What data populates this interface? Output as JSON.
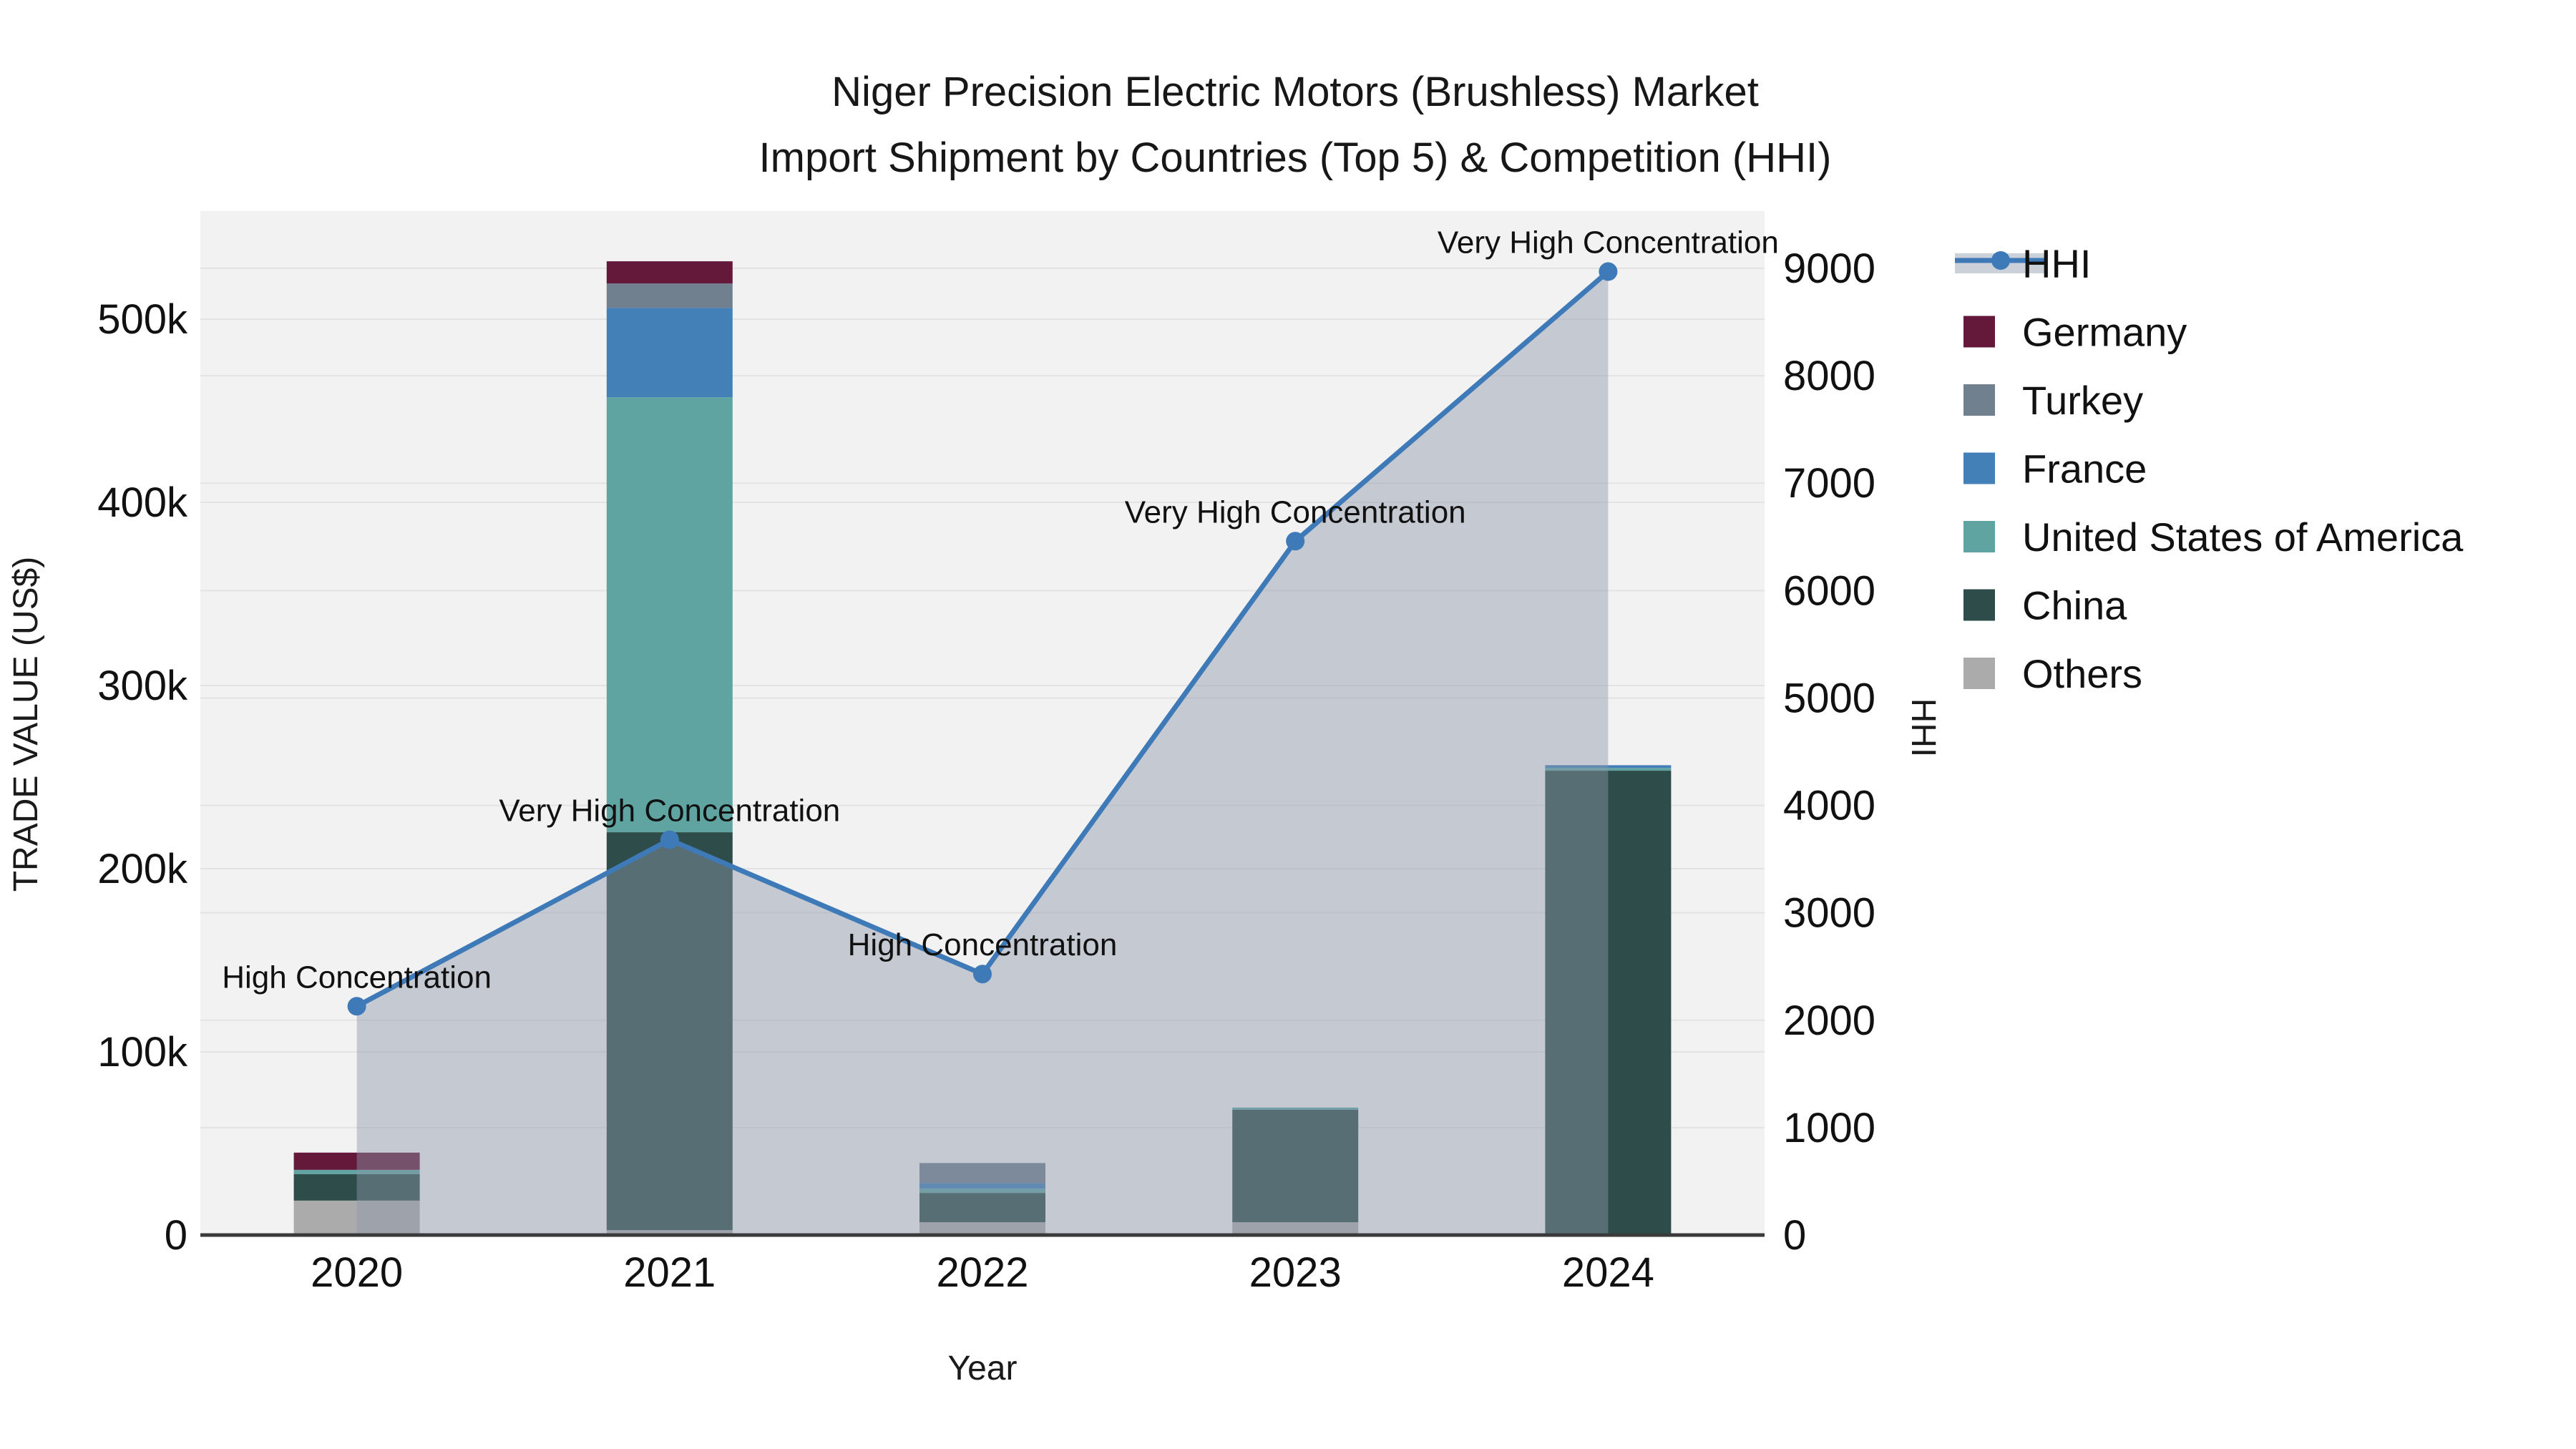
{
  "title": {
    "line1": "Niger Precision Electric Motors (Brushless) Market",
    "line2": "Import Shipment by Countries (Top 5) & Competition (HHI)"
  },
  "axes": {
    "x_title": "Year",
    "left_title": "TRADE VALUE (US$)",
    "right_title": "HHI",
    "x_ticks": [
      "2020",
      "2021",
      "2022",
      "2023",
      "2024"
    ],
    "left_ticks": {
      "labels": [
        "0",
        "100k",
        "200k",
        "300k",
        "400k",
        "500k"
      ],
      "values": [
        0,
        100000,
        200000,
        300000,
        400000,
        500000
      ]
    },
    "right_ticks": {
      "labels": [
        "0",
        "1000",
        "2000",
        "3000",
        "4000",
        "5000",
        "6000",
        "7000",
        "8000",
        "9000"
      ],
      "values": [
        0,
        1000,
        2000,
        3000,
        4000,
        5000,
        6000,
        7000,
        8000,
        9000
      ]
    }
  },
  "chart_data": {
    "type": "bar+line",
    "title": "Niger Precision Electric Motors (Brushless) Market Import Shipment by Countries (Top 5) & Competition (HHI)",
    "xlabel": "Year",
    "ylabel_left": "TRADE VALUE (US$)",
    "ylabel_right": "HHI",
    "categories": [
      "2020",
      "2021",
      "2022",
      "2023",
      "2024"
    ],
    "bar_mode": "stacked",
    "stack_order": "bottom-to-top",
    "series": [
      {
        "name": "Others",
        "color": "#ababab",
        "values": [
          18800,
          2700,
          7000,
          7000,
          0
        ]
      },
      {
        "name": "China",
        "color": "#2e4d4a",
        "values": [
          14500,
          217200,
          16000,
          61400,
          253500
        ]
      },
      {
        "name": "United States of America",
        "color": "#5fa4a1",
        "values": [
          2300,
          237500,
          2300,
          1200,
          1500
        ]
      },
      {
        "name": "France",
        "color": "#4380b7",
        "values": [
          0,
          48800,
          3100,
          0,
          1500
        ]
      },
      {
        "name": "Turkey",
        "color": "#71808f",
        "values": [
          0,
          13300,
          10900,
          0,
          0
        ]
      },
      {
        "name": "Germany",
        "color": "#65193a",
        "values": [
          9400,
          12100,
          0,
          0,
          0
        ]
      }
    ],
    "line_series": {
      "name": "HHI",
      "axis": "right",
      "color": "#3f7ab8",
      "fill": "rgba(140,150,170,0.45)",
      "fill_mode": "tozeroy",
      "values": [
        2130,
        3680,
        2430,
        6460,
        8970
      ]
    },
    "annotations": [
      {
        "category": "2020",
        "text": "High Concentration"
      },
      {
        "category": "2021",
        "text": "Very High Concentration"
      },
      {
        "category": "2022",
        "text": "High Concentration"
      },
      {
        "category": "2023",
        "text": "Very High Concentration"
      },
      {
        "category": "2024",
        "text": "Very High Concentration"
      }
    ],
    "y_left_range": [
      0,
      559000
    ],
    "y_right_range": [
      0,
      9533
    ],
    "grid": true,
    "legend_position": "right"
  },
  "legend": {
    "items": [
      {
        "label": "HHI",
        "type": "line",
        "color": "#3f7ab8"
      },
      {
        "label": "Germany",
        "type": "swatch",
        "color": "#65193a"
      },
      {
        "label": "Turkey",
        "type": "swatch",
        "color": "#71808f"
      },
      {
        "label": "France",
        "type": "swatch",
        "color": "#4380b7"
      },
      {
        "label": "United States of America",
        "type": "swatch",
        "color": "#5fa4a1"
      },
      {
        "label": "China",
        "type": "swatch",
        "color": "#2e4d4a"
      },
      {
        "label": "Others",
        "type": "swatch",
        "color": "#ababab"
      }
    ]
  },
  "colors": {
    "page_bg": "#ffffff",
    "plot_bg": "#f2f2f2",
    "grid": "#e3e3e3",
    "axis_line": "#3a3a3a",
    "hhi_line": "#3f7ab8",
    "hhi_fill": "rgba(140,150,170,0.45)",
    "annotation_text": "#111111"
  }
}
